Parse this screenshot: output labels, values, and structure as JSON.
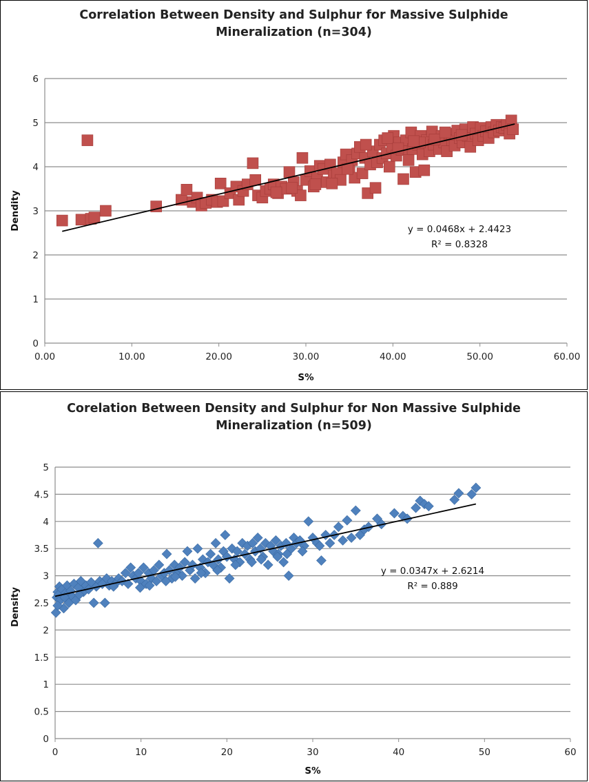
{
  "chart_data": [
    {
      "type": "scatter",
      "title_line1": "Correlation Between Density and Sulphur for Massive Sulphide",
      "title_line2": "Mineralization (n=304)",
      "xlabel": "S%",
      "ylabel": "Dendity",
      "xlim": [
        0,
        60
      ],
      "ylim": [
        0,
        6
      ],
      "x_ticks": [
        "0.00",
        "10.00",
        "20.00",
        "30.00",
        "40.00",
        "50.00",
        "60.00"
      ],
      "y_ticks": [
        "0",
        "1",
        "2",
        "3",
        "4",
        "5",
        "6"
      ],
      "marker": "square",
      "color": "#C0504D",
      "trendline": {
        "slope": 0.0468,
        "intercept": 2.4423,
        "x_range": [
          2,
          54
        ]
      },
      "equation": "y = 0.0468x + 2.4423",
      "r_squared": "R² = 0.8328",
      "points": [
        [
          2.0,
          2.78
        ],
        [
          4.2,
          2.8
        ],
        [
          4.9,
          4.6
        ],
        [
          5.3,
          2.82
        ],
        [
          5.7,
          2.85
        ],
        [
          7.0,
          3.0
        ],
        [
          12.8,
          3.1
        ],
        [
          15.7,
          3.25
        ],
        [
          16.3,
          3.48
        ],
        [
          17.0,
          3.2
        ],
        [
          17.5,
          3.3
        ],
        [
          18.0,
          3.12
        ],
        [
          18.5,
          3.18
        ],
        [
          19.2,
          3.25
        ],
        [
          19.8,
          3.2
        ],
        [
          20.2,
          3.62
        ],
        [
          20.5,
          3.22
        ],
        [
          21.3,
          3.4
        ],
        [
          22.0,
          3.55
        ],
        [
          22.3,
          3.25
        ],
        [
          22.8,
          3.45
        ],
        [
          23.3,
          3.6
        ],
        [
          23.9,
          4.08
        ],
        [
          24.2,
          3.7
        ],
        [
          24.5,
          3.35
        ],
        [
          25.0,
          3.3
        ],
        [
          25.4,
          3.45
        ],
        [
          25.9,
          3.5
        ],
        [
          26.3,
          3.6
        ],
        [
          26.8,
          3.4
        ],
        [
          27.2,
          3.55
        ],
        [
          27.7,
          3.5
        ],
        [
          28.1,
          3.88
        ],
        [
          28.6,
          3.65
        ],
        [
          29.0,
          3.45
        ],
        [
          29.4,
          3.35
        ],
        [
          29.6,
          4.2
        ],
        [
          30.0,
          3.7
        ],
        [
          30.5,
          3.9
        ],
        [
          30.9,
          3.55
        ],
        [
          31.3,
          3.75
        ],
        [
          31.6,
          4.02
        ],
        [
          32.0,
          3.95
        ],
        [
          32.4,
          3.65
        ],
        [
          32.8,
          4.05
        ],
        [
          33.2,
          3.8
        ],
        [
          33.6,
          3.85
        ],
        [
          34.0,
          3.7
        ],
        [
          34.3,
          4.1
        ],
        [
          34.6,
          4.28
        ],
        [
          35.0,
          3.95
        ],
        [
          35.3,
          4.15
        ],
        [
          35.6,
          3.75
        ],
        [
          35.9,
          4.3
        ],
        [
          36.2,
          4.45
        ],
        [
          36.5,
          3.85
        ],
        [
          36.8,
          4.2
        ],
        [
          37.1,
          3.4
        ],
        [
          37.4,
          4.05
        ],
        [
          37.7,
          4.35
        ],
        [
          38.0,
          3.52
        ],
        [
          38.2,
          4.1
        ],
        [
          38.5,
          4.5
        ],
        [
          38.8,
          4.2
        ],
        [
          39.0,
          4.6
        ],
        [
          39.3,
          4.3
        ],
        [
          39.6,
          4.0
        ],
        [
          39.9,
          4.45
        ],
        [
          40.1,
          4.7
        ],
        [
          40.4,
          4.25
        ],
        [
          40.7,
          4.55
        ],
        [
          41.0,
          4.38
        ],
        [
          41.2,
          3.72
        ],
        [
          41.5,
          4.6
        ],
        [
          41.8,
          4.15
        ],
        [
          42.1,
          4.78
        ],
        [
          42.3,
          4.4
        ],
        [
          42.6,
          3.88
        ],
        [
          42.9,
          4.5
        ],
        [
          43.2,
          4.7
        ],
        [
          43.4,
          4.28
        ],
        [
          43.6,
          3.92
        ],
        [
          43.9,
          4.6
        ],
        [
          44.2,
          4.35
        ],
        [
          44.5,
          4.8
        ],
        [
          44.7,
          4.5
        ],
        [
          45.0,
          4.62
        ],
        [
          45.3,
          4.4
        ],
        [
          45.6,
          4.7
        ],
        [
          45.9,
          4.55
        ],
        [
          46.2,
          4.35
        ],
        [
          46.5,
          4.75
        ],
        [
          46.8,
          4.6
        ],
        [
          47.1,
          4.48
        ],
        [
          47.4,
          4.82
        ],
        [
          47.7,
          4.65
        ],
        [
          48.0,
          4.55
        ],
        [
          48.3,
          4.85
        ],
        [
          48.6,
          4.7
        ],
        [
          48.9,
          4.45
        ],
        [
          49.2,
          4.9
        ],
        [
          49.5,
          4.75
        ],
        [
          49.8,
          4.6
        ],
        [
          50.1,
          4.88
        ],
        [
          50.4,
          4.7
        ],
        [
          50.7,
          4.8
        ],
        [
          51.0,
          4.65
        ],
        [
          51.3,
          4.9
        ],
        [
          51.6,
          4.78
        ],
        [
          51.9,
          4.95
        ],
        [
          52.2,
          4.82
        ],
        [
          52.5,
          4.9
        ],
        [
          52.8,
          4.88
        ],
        [
          53.1,
          4.95
        ],
        [
          53.4,
          4.75
        ],
        [
          53.6,
          5.05
        ],
        [
          53.8,
          4.85
        ],
        [
          36.9,
          4.5
        ],
        [
          39.4,
          4.65
        ],
        [
          43.1,
          4.55
        ],
        [
          44.8,
          4.62
        ],
        [
          46.0,
          4.78
        ],
        [
          47.9,
          4.72
        ],
        [
          40.6,
          4.42
        ],
        [
          42.4,
          4.58
        ],
        [
          34.8,
          3.95
        ],
        [
          33.0,
          3.62
        ],
        [
          31.1,
          3.6
        ],
        [
          28.4,
          3.52
        ],
        [
          26.6,
          3.42
        ]
      ]
    },
    {
      "type": "scatter",
      "title_line1": "Corelation Between Density and Sulphur for Non Massive Sulphide",
      "title_line2": "Mineralization (n=509)",
      "xlabel": "S%",
      "ylabel": "Density",
      "xlim": [
        0,
        60
      ],
      "ylim": [
        0,
        5
      ],
      "x_ticks": [
        "0",
        "10",
        "20",
        "30",
        "40",
        "50",
        "60"
      ],
      "y_ticks": [
        "0",
        "0.5",
        "1",
        "1.5",
        "2",
        "2.5",
        "3",
        "3.5",
        "4",
        "4.5",
        "5"
      ],
      "marker": "diamond",
      "color": "#4F81BD",
      "trendline": {
        "slope": 0.0347,
        "intercept": 2.6214,
        "x_range": [
          0,
          49
        ]
      },
      "equation": "y = 0.0347x + 2.6214",
      "r_squared": "R² = 0.889",
      "points": [
        [
          0.1,
          2.32
        ],
        [
          0.2,
          2.6
        ],
        [
          0.3,
          2.7
        ],
        [
          0.4,
          2.65
        ],
        [
          0.5,
          2.8
        ],
        [
          0.6,
          2.55
        ],
        [
          0.8,
          2.75
        ],
        [
          1.0,
          2.4
        ],
        [
          1.2,
          2.68
        ],
        [
          1.4,
          2.82
        ],
        [
          1.6,
          2.5
        ],
        [
          1.8,
          2.72
        ],
        [
          2.0,
          2.62
        ],
        [
          2.2,
          2.85
        ],
        [
          2.4,
          2.55
        ],
        [
          2.7,
          2.78
        ],
        [
          3.0,
          2.9
        ],
        [
          3.3,
          2.7
        ],
        [
          3.6,
          2.82
        ],
        [
          3.9,
          2.75
        ],
        [
          4.2,
          2.88
        ],
        [
          4.5,
          2.5
        ],
        [
          4.8,
          2.8
        ],
        [
          5.0,
          3.6
        ],
        [
          5.2,
          2.9
        ],
        [
          5.5,
          2.85
        ],
        [
          5.8,
          2.5
        ],
        [
          6.0,
          2.95
        ],
        [
          6.3,
          2.82
        ],
        [
          6.6,
          2.9
        ],
        [
          7.0,
          2.85
        ],
        [
          7.4,
          2.95
        ],
        [
          7.8,
          2.9
        ],
        [
          8.2,
          3.05
        ],
        [
          8.5,
          2.85
        ],
        [
          8.8,
          3.15
        ],
        [
          9.1,
          3.0
        ],
        [
          9.4,
          2.95
        ],
        [
          9.7,
          3.05
        ],
        [
          10.0,
          2.9
        ],
        [
          10.3,
          3.15
        ],
        [
          10.6,
          2.85
        ],
        [
          10.9,
          3.05
        ],
        [
          11.2,
          2.95
        ],
        [
          11.5,
          3.1
        ],
        [
          11.8,
          2.9
        ],
        [
          12.1,
          3.2
        ],
        [
          12.4,
          3.0
        ],
        [
          12.7,
          3.05
        ],
        [
          13.0,
          3.4
        ],
        [
          13.3,
          3.1
        ],
        [
          13.6,
          2.95
        ],
        [
          13.9,
          3.2
        ],
        [
          14.2,
          3.05
        ],
        [
          14.5,
          3.15
        ],
        [
          14.8,
          3.0
        ],
        [
          15.1,
          3.25
        ],
        [
          15.4,
          3.45
        ],
        [
          15.7,
          3.1
        ],
        [
          16.0,
          3.2
        ],
        [
          16.3,
          2.95
        ],
        [
          16.6,
          3.5
        ],
        [
          16.9,
          3.15
        ],
        [
          17.2,
          3.3
        ],
        [
          17.5,
          3.05
        ],
        [
          17.8,
          3.25
        ],
        [
          18.1,
          3.4
        ],
        [
          18.4,
          3.2
        ],
        [
          18.7,
          3.6
        ],
        [
          19.0,
          3.3
        ],
        [
          19.3,
          3.15
        ],
        [
          19.6,
          3.45
        ],
        [
          19.8,
          3.75
        ],
        [
          20.0,
          3.35
        ],
        [
          20.3,
          2.95
        ],
        [
          20.6,
          3.5
        ],
        [
          20.9,
          3.3
        ],
        [
          21.2,
          3.45
        ],
        [
          21.5,
          3.25
        ],
        [
          21.8,
          3.6
        ],
        [
          22.1,
          3.4
        ],
        [
          22.4,
          3.55
        ],
        [
          22.7,
          3.3
        ],
        [
          23.0,
          3.6
        ],
        [
          23.3,
          3.45
        ],
        [
          23.6,
          3.7
        ],
        [
          23.9,
          3.5
        ],
        [
          24.2,
          3.35
        ],
        [
          24.5,
          3.6
        ],
        [
          24.8,
          3.2
        ],
        [
          25.1,
          3.55
        ],
        [
          25.4,
          3.45
        ],
        [
          25.7,
          3.65
        ],
        [
          26.0,
          3.4
        ],
        [
          26.3,
          3.55
        ],
        [
          26.6,
          3.25
        ],
        [
          26.9,
          3.6
        ],
        [
          27.2,
          3.0
        ],
        [
          27.5,
          3.5
        ],
        [
          27.8,
          3.7
        ],
        [
          28.1,
          3.6
        ],
        [
          28.5,
          3.65
        ],
        [
          29.0,
          3.55
        ],
        [
          29.5,
          4.0
        ],
        [
          30.0,
          3.7
        ],
        [
          30.5,
          3.6
        ],
        [
          31.0,
          3.28
        ],
        [
          31.5,
          3.75
        ],
        [
          32.5,
          3.75
        ],
        [
          33.0,
          3.9
        ],
        [
          33.5,
          3.65
        ],
        [
          34.0,
          4.02
        ],
        [
          35.0,
          4.2
        ],
        [
          35.5,
          3.75
        ],
        [
          36.0,
          3.85
        ],
        [
          37.5,
          4.05
        ],
        [
          39.5,
          4.15
        ],
        [
          40.5,
          4.1
        ],
        [
          42.0,
          4.25
        ],
        [
          42.5,
          4.38
        ],
        [
          43.0,
          4.32
        ],
        [
          43.5,
          4.28
        ],
        [
          46.5,
          4.4
        ],
        [
          47.0,
          4.52
        ],
        [
          48.5,
          4.5
        ],
        [
          49.0,
          4.62
        ],
        [
          0.3,
          2.45
        ],
        [
          1.1,
          2.6
        ],
        [
          2.8,
          2.65
        ],
        [
          6.8,
          2.8
        ],
        [
          9.9,
          2.78
        ],
        [
          11.0,
          2.82
        ],
        [
          12.9,
          2.9
        ],
        [
          14.0,
          2.98
        ],
        [
          17.0,
          3.05
        ],
        [
          18.9,
          3.1
        ],
        [
          21.0,
          3.2
        ],
        [
          22.9,
          3.25
        ],
        [
          24.0,
          3.3
        ],
        [
          25.9,
          3.35
        ],
        [
          27.0,
          3.4
        ],
        [
          28.8,
          3.45
        ],
        [
          30.8,
          3.55
        ],
        [
          32.0,
          3.6
        ],
        [
          34.5,
          3.7
        ],
        [
          36.5,
          3.9
        ],
        [
          38.0,
          3.95
        ],
        [
          41.0,
          4.05
        ]
      ]
    }
  ]
}
